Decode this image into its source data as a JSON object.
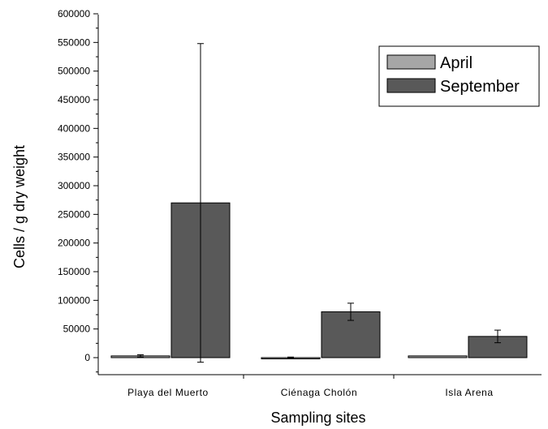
{
  "chart_data": {
    "type": "bar",
    "title": "",
    "xlabel": "Sampling sites",
    "ylabel": "Cells / g dry weight",
    "categories": [
      "Playa del Muerto",
      "Ciénaga Cholón",
      "Isla Arena"
    ],
    "ylim": [
      -30000,
      600000
    ],
    "yticks": [
      0,
      50000,
      100000,
      150000,
      200000,
      250000,
      300000,
      350000,
      400000,
      450000,
      500000,
      550000,
      600000
    ],
    "grid": false,
    "legend_position": "top-right",
    "series": [
      {
        "name": "April",
        "color": "#a6a6a6",
        "values": [
          3000,
          0,
          3000
        ],
        "errors": [
          2000,
          1000,
          0
        ]
      },
      {
        "name": "September",
        "color": "#595959",
        "values": [
          270000,
          80000,
          37000
        ],
        "errors": [
          278000,
          15000,
          11000
        ]
      }
    ]
  }
}
